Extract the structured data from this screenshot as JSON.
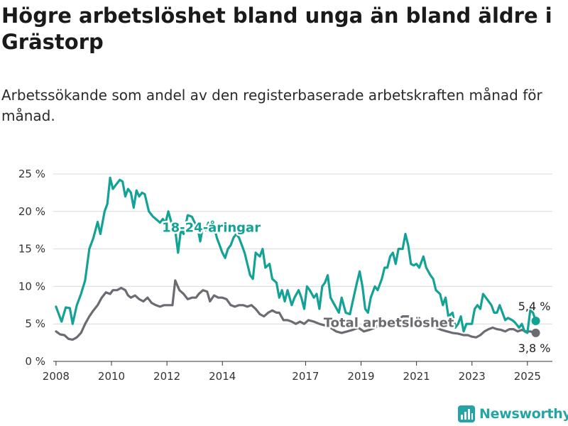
{
  "title": "Högre arbetslöshet bland unga än bland äldre i Grästorp",
  "subtitle": "Arbetssökande som andel av den registerbaserade arbetskraften månad för månad.",
  "brand": "Newsworthy",
  "colors": {
    "youth": "#13a295",
    "total": "#6b6b72",
    "grid": "#d9d9d9",
    "text": "#222222"
  },
  "chart_data": {
    "type": "line",
    "x_axis": {
      "ticks": [
        "2008",
        "2010",
        "2012",
        "2014",
        "2017",
        "2019",
        "2021",
        "2023",
        "2025"
      ],
      "range": [
        2007.9,
        2025.9
      ]
    },
    "y_axis": {
      "ticks": [
        "0 %",
        "5 %",
        "10 %",
        "15 %",
        "20 %",
        "25 %"
      ],
      "range": [
        0,
        25
      ]
    },
    "grid": true,
    "series": [
      {
        "name": "18-24-åringar",
        "color": "#13a295",
        "end_label": "5,4 %",
        "points": [
          [
            2008.0,
            7.3
          ],
          [
            2008.2,
            5.3
          ],
          [
            2008.35,
            7.2
          ],
          [
            2008.5,
            7.1
          ],
          [
            2008.6,
            5.0
          ],
          [
            2008.75,
            7.5
          ],
          [
            2008.9,
            9.0
          ],
          [
            2009.05,
            10.8
          ],
          [
            2009.2,
            15.0
          ],
          [
            2009.35,
            16.5
          ],
          [
            2009.5,
            18.6
          ],
          [
            2009.6,
            17.0
          ],
          [
            2009.75,
            20.0
          ],
          [
            2009.85,
            21.0
          ],
          [
            2009.95,
            24.5
          ],
          [
            2010.05,
            23.0
          ],
          [
            2010.15,
            23.5
          ],
          [
            2010.3,
            24.2
          ],
          [
            2010.4,
            24.0
          ],
          [
            2010.5,
            22.0
          ],
          [
            2010.6,
            23.0
          ],
          [
            2010.7,
            22.5
          ],
          [
            2010.8,
            20.5
          ],
          [
            2010.9,
            22.8
          ],
          [
            2011.0,
            22.0
          ],
          [
            2011.1,
            22.5
          ],
          [
            2011.2,
            22.3
          ],
          [
            2011.35,
            20.0
          ],
          [
            2011.5,
            19.3
          ],
          [
            2011.6,
            19.0
          ],
          [
            2011.75,
            18.5
          ],
          [
            2011.85,
            19.0
          ],
          [
            2011.95,
            18.5
          ],
          [
            2012.05,
            20.0
          ],
          [
            2012.2,
            18.0
          ],
          [
            2012.3,
            17.5
          ],
          [
            2012.4,
            14.5
          ],
          [
            2012.5,
            17.5
          ],
          [
            2012.6,
            17.0
          ],
          [
            2012.75,
            19.5
          ],
          [
            2012.9,
            19.3
          ],
          [
            2013.0,
            18.5
          ],
          [
            2013.1,
            18.0
          ],
          [
            2013.2,
            16.0
          ],
          [
            2013.3,
            18.0
          ],
          [
            2013.4,
            17.5
          ],
          [
            2013.5,
            18.5
          ],
          [
            2013.6,
            17.5
          ],
          [
            2013.7,
            18.0
          ],
          [
            2013.8,
            16.5
          ],
          [
            2013.9,
            15.5
          ],
          [
            2014.0,
            14.5
          ],
          [
            2014.1,
            13.8
          ],
          [
            2014.2,
            15.0
          ],
          [
            2014.3,
            15.5
          ],
          [
            2014.4,
            16.5
          ],
          [
            2014.5,
            17.0
          ],
          [
            2014.6,
            16.5
          ],
          [
            2014.7,
            15.5
          ],
          [
            2014.8,
            14.5
          ],
          [
            2014.9,
            13.0
          ],
          [
            2015.0,
            11.5
          ],
          [
            2015.1,
            11.0
          ],
          [
            2015.2,
            14.5
          ],
          [
            2015.35,
            14.0
          ],
          [
            2015.45,
            15.0
          ],
          [
            2015.55,
            12.5
          ],
          [
            2015.7,
            13.0
          ],
          [
            2015.8,
            11.0
          ],
          [
            2015.95,
            10.5
          ],
          [
            2016.05,
            8.5
          ],
          [
            2016.15,
            9.5
          ],
          [
            2016.25,
            8.0
          ],
          [
            2016.35,
            9.5
          ],
          [
            2016.5,
            7.5
          ],
          [
            2016.6,
            8.5
          ],
          [
            2016.75,
            9.5
          ],
          [
            2016.85,
            8.5
          ],
          [
            2016.95,
            7.0
          ],
          [
            2017.05,
            10.0
          ],
          [
            2017.15,
            9.5
          ],
          [
            2017.3,
            8.5
          ],
          [
            2017.4,
            9.0
          ],
          [
            2017.5,
            7.0
          ],
          [
            2017.6,
            10.0
          ],
          [
            2017.7,
            10.5
          ],
          [
            2017.8,
            11.5
          ],
          [
            2017.9,
            8.5
          ],
          [
            2018.05,
            7.5
          ],
          [
            2018.2,
            6.5
          ],
          [
            2018.3,
            8.5
          ],
          [
            2018.45,
            6.5
          ],
          [
            2018.6,
            6.3
          ],
          [
            2018.7,
            8.0
          ],
          [
            2018.85,
            10.5
          ],
          [
            2018.95,
            12.0
          ],
          [
            2019.05,
            10.0
          ],
          [
            2019.15,
            7.0
          ],
          [
            2019.25,
            6.5
          ],
          [
            2019.35,
            8.5
          ],
          [
            2019.5,
            10.0
          ],
          [
            2019.6,
            9.5
          ],
          [
            2019.75,
            11.0
          ],
          [
            2019.85,
            12.5
          ],
          [
            2019.95,
            12.5
          ],
          [
            2020.05,
            14.0
          ],
          [
            2020.15,
            14.5
          ],
          [
            2020.25,
            13.0
          ],
          [
            2020.35,
            15.0
          ],
          [
            2020.5,
            15.0
          ],
          [
            2020.6,
            17.0
          ],
          [
            2020.7,
            15.5
          ],
          [
            2020.8,
            13.0
          ],
          [
            2020.9,
            12.8
          ],
          [
            2021.0,
            13.0
          ],
          [
            2021.1,
            12.5
          ],
          [
            2021.25,
            14.0
          ],
          [
            2021.35,
            12.5
          ],
          [
            2021.5,
            11.5
          ],
          [
            2021.6,
            11.0
          ],
          [
            2021.7,
            9.5
          ],
          [
            2021.85,
            9.0
          ],
          [
            2021.95,
            7.5
          ],
          [
            2022.05,
            8.5
          ],
          [
            2022.15,
            6.0
          ],
          [
            2022.3,
            6.5
          ],
          [
            2022.4,
            4.5
          ],
          [
            2022.5,
            5.0
          ],
          [
            2022.6,
            6.0
          ],
          [
            2022.7,
            4.0
          ],
          [
            2022.8,
            5.0
          ],
          [
            2022.9,
            5.0
          ],
          [
            2023.0,
            5.0
          ],
          [
            2023.1,
            7.0
          ],
          [
            2023.2,
            7.5
          ],
          [
            2023.3,
            7.0
          ],
          [
            2023.4,
            9.0
          ],
          [
            2023.5,
            8.5
          ],
          [
            2023.6,
            8.0
          ],
          [
            2023.7,
            7.5
          ],
          [
            2023.8,
            6.5
          ],
          [
            2023.9,
            6.5
          ],
          [
            2024.0,
            7.5
          ],
          [
            2024.1,
            6.5
          ],
          [
            2024.2,
            5.5
          ],
          [
            2024.3,
            5.8
          ],
          [
            2024.45,
            5.5
          ],
          [
            2024.55,
            5.2
          ],
          [
            2024.7,
            4.5
          ],
          [
            2024.8,
            5.0
          ],
          [
            2024.9,
            4.0
          ],
          [
            2025.0,
            3.8
          ],
          [
            2025.1,
            6.8
          ],
          [
            2025.2,
            6.5
          ],
          [
            2025.3,
            5.4
          ]
        ]
      },
      {
        "name": "Total arbetslöshet",
        "color": "#6b6b72",
        "end_label": "3,8 %",
        "points": [
          [
            2008.0,
            4.0
          ],
          [
            2008.15,
            3.6
          ],
          [
            2008.3,
            3.5
          ],
          [
            2008.45,
            3.0
          ],
          [
            2008.6,
            2.9
          ],
          [
            2008.75,
            3.2
          ],
          [
            2008.9,
            3.8
          ],
          [
            2009.05,
            5.0
          ],
          [
            2009.2,
            6.0
          ],
          [
            2009.35,
            6.8
          ],
          [
            2009.5,
            7.5
          ],
          [
            2009.65,
            8.5
          ],
          [
            2009.8,
            9.2
          ],
          [
            2009.95,
            9.0
          ],
          [
            2010.05,
            9.5
          ],
          [
            2010.2,
            9.5
          ],
          [
            2010.35,
            9.8
          ],
          [
            2010.5,
            9.5
          ],
          [
            2010.6,
            8.8
          ],
          [
            2010.7,
            8.5
          ],
          [
            2010.85,
            8.8
          ],
          [
            2011.0,
            8.3
          ],
          [
            2011.15,
            8.0
          ],
          [
            2011.3,
            8.5
          ],
          [
            2011.45,
            7.8
          ],
          [
            2011.6,
            7.5
          ],
          [
            2011.75,
            7.3
          ],
          [
            2011.9,
            7.5
          ],
          [
            2012.05,
            7.5
          ],
          [
            2012.2,
            7.5
          ],
          [
            2012.3,
            10.8
          ],
          [
            2012.45,
            9.5
          ],
          [
            2012.6,
            9.0
          ],
          [
            2012.75,
            8.3
          ],
          [
            2012.9,
            8.5
          ],
          [
            2013.05,
            8.5
          ],
          [
            2013.15,
            9.0
          ],
          [
            2013.3,
            9.5
          ],
          [
            2013.45,
            9.3
          ],
          [
            2013.55,
            8.0
          ],
          [
            2013.7,
            8.8
          ],
          [
            2013.85,
            8.5
          ],
          [
            2014.0,
            8.5
          ],
          [
            2014.15,
            8.3
          ],
          [
            2014.3,
            7.5
          ],
          [
            2014.45,
            7.3
          ],
          [
            2014.6,
            7.5
          ],
          [
            2014.75,
            7.5
          ],
          [
            2014.9,
            7.3
          ],
          [
            2015.05,
            7.5
          ],
          [
            2015.2,
            7.0
          ],
          [
            2015.35,
            6.3
          ],
          [
            2015.5,
            6.0
          ],
          [
            2015.65,
            6.5
          ],
          [
            2015.8,
            6.8
          ],
          [
            2015.95,
            6.5
          ],
          [
            2016.05,
            6.5
          ],
          [
            2016.2,
            5.5
          ],
          [
            2016.35,
            5.5
          ],
          [
            2016.5,
            5.3
          ],
          [
            2016.65,
            5.0
          ],
          [
            2016.8,
            5.3
          ],
          [
            2016.95,
            5.0
          ],
          [
            2017.1,
            5.5
          ],
          [
            2017.3,
            5.3
          ],
          [
            2017.5,
            5.0
          ],
          [
            2017.7,
            4.8
          ],
          [
            2017.9,
            4.5
          ],
          [
            2018.1,
            4.0
          ],
          [
            2018.3,
            3.8
          ],
          [
            2018.5,
            4.0
          ],
          [
            2018.7,
            4.2
          ],
          [
            2018.9,
            4.5
          ],
          [
            2019.1,
            4.0
          ],
          [
            2019.3,
            4.2
          ],
          [
            2019.5,
            4.5
          ],
          [
            2019.7,
            5.0
          ],
          [
            2019.9,
            5.2
          ],
          [
            2020.1,
            5.5
          ],
          [
            2020.3,
            5.5
          ],
          [
            2020.5,
            6.0
          ],
          [
            2020.7,
            6.0
          ],
          [
            2020.9,
            5.5
          ],
          [
            2021.1,
            5.3
          ],
          [
            2021.3,
            5.0
          ],
          [
            2021.5,
            4.8
          ],
          [
            2021.7,
            4.5
          ],
          [
            2021.9,
            4.2
          ],
          [
            2022.1,
            4.0
          ],
          [
            2022.3,
            3.8
          ],
          [
            2022.5,
            3.7
          ],
          [
            2022.7,
            3.5
          ],
          [
            2022.85,
            3.5
          ],
          [
            2023.0,
            3.3
          ],
          [
            2023.15,
            3.2
          ],
          [
            2023.3,
            3.5
          ],
          [
            2023.45,
            4.0
          ],
          [
            2023.6,
            4.3
          ],
          [
            2023.75,
            4.5
          ],
          [
            2023.9,
            4.3
          ],
          [
            2024.05,
            4.2
          ],
          [
            2024.2,
            4.0
          ],
          [
            2024.35,
            4.3
          ],
          [
            2024.5,
            4.3
          ],
          [
            2024.65,
            4.0
          ],
          [
            2024.8,
            4.2
          ],
          [
            2024.95,
            4.0
          ],
          [
            2025.1,
            4.0
          ],
          [
            2025.3,
            3.8
          ]
        ]
      }
    ],
    "annotations": [
      {
        "text": "18-24-åringar",
        "x": 2013.6,
        "y": 17.3,
        "series": 0
      },
      {
        "text": "Total arbetslöshet",
        "x": 2020.0,
        "y": 4.6,
        "series": 1
      }
    ]
  }
}
